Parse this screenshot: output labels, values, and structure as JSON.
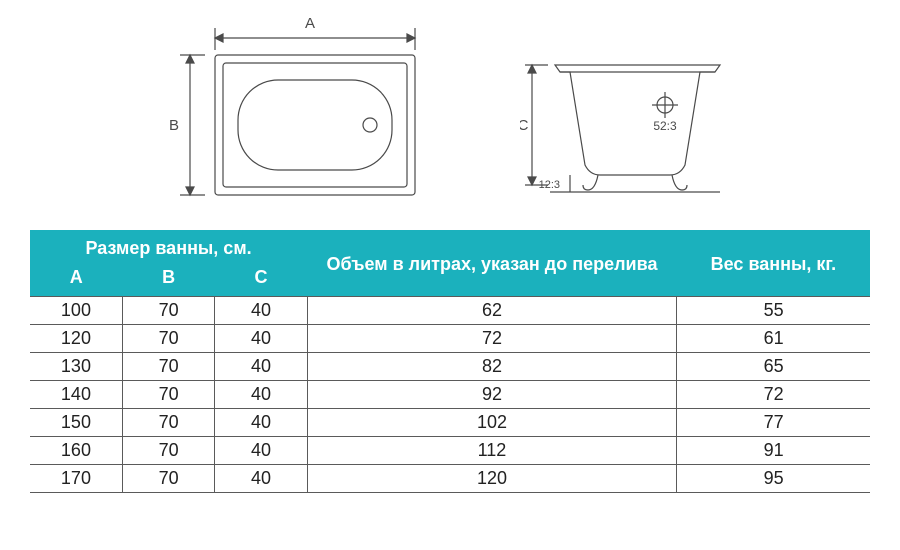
{
  "diagram": {
    "label_a": "A",
    "label_b": "B",
    "label_c": "C",
    "label_52_3": "52:3",
    "label_12_3": "12:3",
    "stroke_color": "#4a4a4a",
    "stroke_width": 1.2
  },
  "table": {
    "header_bg": "#1bb1bd",
    "header_fg": "#ffffff",
    "border_color": "#5a5a5a",
    "cell_fontsize": 18,
    "header_fontsize": 18,
    "headers": {
      "size_group": "Размер ванны, см.",
      "col_a": "A",
      "col_b": "B",
      "col_c": "C",
      "volume": "Объем в литрах, указан до перелива",
      "weight": "Вес ванны, кг."
    },
    "rows": [
      {
        "a": "100",
        "b": "70",
        "c": "40",
        "vol": "62",
        "wt": "55"
      },
      {
        "a": "120",
        "b": "70",
        "c": "40",
        "vol": "72",
        "wt": "61"
      },
      {
        "a": "130",
        "b": "70",
        "c": "40",
        "vol": "82",
        "wt": "65"
      },
      {
        "a": "140",
        "b": "70",
        "c": "40",
        "vol": "92",
        "wt": "72"
      },
      {
        "a": "150",
        "b": "70",
        "c": "40",
        "vol": "102",
        "wt": "77"
      },
      {
        "a": "160",
        "b": "70",
        "c": "40",
        "vol": "112",
        "wt": "91"
      },
      {
        "a": "170",
        "b": "70",
        "c": "40",
        "vol": "120",
        "wt": "95"
      }
    ]
  }
}
